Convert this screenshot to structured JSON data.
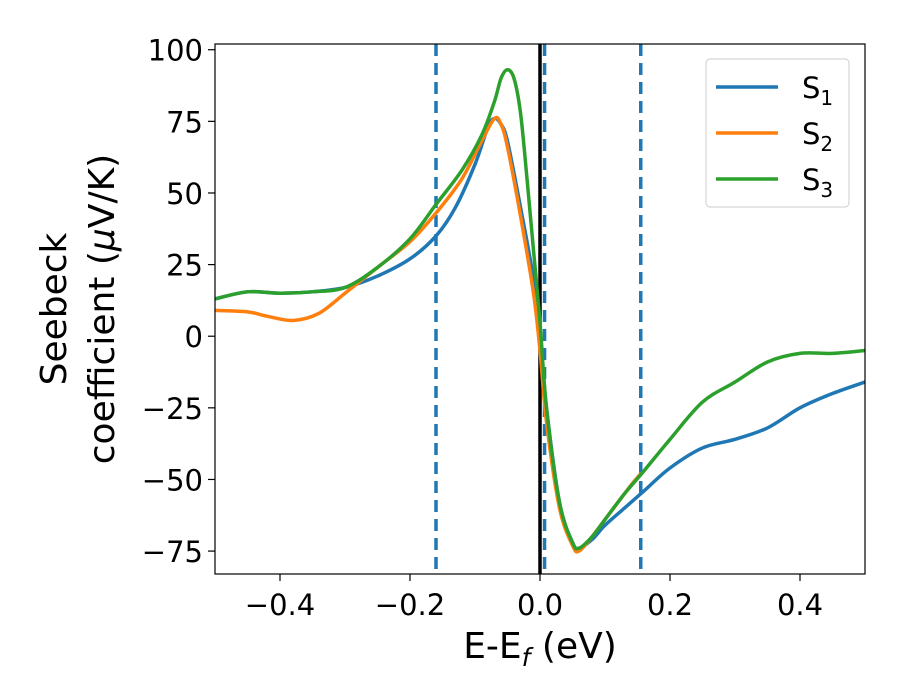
{
  "chart_data": {
    "type": "line",
    "title": "",
    "xlabel": {
      "main": "E-E",
      "sub": "f",
      "suffix": " (eV)"
    },
    "ylabel": {
      "line1": "Seebeck",
      "line2_prefix": "coefficient  (",
      "mu": "μ",
      "line2_suffix": "V/K)"
    },
    "xlim": [
      -0.5,
      0.5
    ],
    "ylim": [
      -83,
      102
    ],
    "x_ticks": [
      -0.4,
      -0.2,
      0.0,
      0.2,
      0.4
    ],
    "x_tick_labels": [
      "−0.4",
      "−0.2",
      "0.0",
      "0.2",
      "0.4"
    ],
    "y_ticks": [
      -75,
      -50,
      -25,
      0,
      25,
      50,
      75,
      100
    ],
    "y_tick_labels": [
      "−75",
      "−50",
      "−25",
      "0",
      "25",
      "50",
      "75",
      "100"
    ],
    "grid": false,
    "legend_position": "top-right",
    "vlines": [
      {
        "x": -0.16,
        "style": "dashed",
        "color": "#1f77b4"
      },
      {
        "x": 0.0,
        "style": "solid",
        "color": "#000000"
      },
      {
        "x": 0.007,
        "style": "dashed",
        "color": "#1f77b4"
      },
      {
        "x": 0.155,
        "style": "dashed",
        "color": "#1f77b4"
      }
    ],
    "series": [
      {
        "name": "S",
        "sub": "1",
        "color": "#1f77b4",
        "points": [
          [
            -0.5,
            13
          ],
          [
            -0.45,
            15.5
          ],
          [
            -0.4,
            15
          ],
          [
            -0.35,
            15.5
          ],
          [
            -0.3,
            17
          ],
          [
            -0.25,
            21
          ],
          [
            -0.2,
            27
          ],
          [
            -0.16,
            35
          ],
          [
            -0.13,
            45
          ],
          [
            -0.1,
            60
          ],
          [
            -0.08,
            73
          ],
          [
            -0.07,
            76
          ],
          [
            -0.06,
            74
          ],
          [
            -0.05,
            68
          ],
          [
            -0.03,
            45
          ],
          [
            -0.01,
            20
          ],
          [
            0.0,
            0
          ],
          [
            0.01,
            -25
          ],
          [
            0.03,
            -58
          ],
          [
            0.05,
            -72
          ],
          [
            0.06,
            -74
          ],
          [
            0.08,
            -71
          ],
          [
            0.1,
            -66
          ],
          [
            0.13,
            -60
          ],
          [
            0.16,
            -54
          ],
          [
            0.2,
            -46
          ],
          [
            0.25,
            -39
          ],
          [
            0.3,
            -36
          ],
          [
            0.35,
            -32
          ],
          [
            0.4,
            -25
          ],
          [
            0.45,
            -20
          ],
          [
            0.5,
            -16
          ]
        ]
      },
      {
        "name": "S",
        "sub": "2",
        "color": "#ff7f0e",
        "points": [
          [
            -0.5,
            9
          ],
          [
            -0.45,
            8.5
          ],
          [
            -0.42,
            7
          ],
          [
            -0.38,
            5.5
          ],
          [
            -0.34,
            8
          ],
          [
            -0.3,
            15
          ],
          [
            -0.25,
            24
          ],
          [
            -0.2,
            33
          ],
          [
            -0.16,
            43
          ],
          [
            -0.12,
            55
          ],
          [
            -0.09,
            68
          ],
          [
            -0.07,
            76
          ],
          [
            -0.06,
            74
          ],
          [
            -0.05,
            66
          ],
          [
            -0.03,
            42
          ],
          [
            -0.01,
            15
          ],
          [
            0.0,
            -5
          ],
          [
            0.01,
            -30
          ],
          [
            0.03,
            -60
          ],
          [
            0.05,
            -73
          ],
          [
            0.06,
            -75
          ],
          [
            0.08,
            -70
          ],
          [
            0.1,
            -64
          ],
          [
            0.12,
            -58
          ],
          [
            0.14,
            -52
          ],
          [
            0.155,
            -48
          ]
        ]
      },
      {
        "name": "S",
        "sub": "3",
        "color": "#2ca02c",
        "points": [
          [
            -0.5,
            13
          ],
          [
            -0.45,
            15.5
          ],
          [
            -0.4,
            15
          ],
          [
            -0.35,
            15.5
          ],
          [
            -0.3,
            17
          ],
          [
            -0.25,
            24
          ],
          [
            -0.2,
            34
          ],
          [
            -0.16,
            46
          ],
          [
            -0.12,
            58
          ],
          [
            -0.09,
            70
          ],
          [
            -0.07,
            82
          ],
          [
            -0.06,
            90
          ],
          [
            -0.05,
            93
          ],
          [
            -0.04,
            90
          ],
          [
            -0.03,
            78
          ],
          [
            -0.02,
            55
          ],
          [
            -0.01,
            30
          ],
          [
            0.0,
            5
          ],
          [
            0.01,
            -25
          ],
          [
            0.03,
            -58
          ],
          [
            0.05,
            -72
          ],
          [
            0.06,
            -74
          ],
          [
            0.08,
            -70
          ],
          [
            0.1,
            -64
          ],
          [
            0.13,
            -55
          ],
          [
            0.16,
            -47
          ],
          [
            0.2,
            -36
          ],
          [
            0.25,
            -23
          ],
          [
            0.3,
            -16
          ],
          [
            0.35,
            -9
          ],
          [
            0.4,
            -6
          ],
          [
            0.45,
            -6
          ],
          [
            0.5,
            -5
          ]
        ]
      }
    ]
  }
}
